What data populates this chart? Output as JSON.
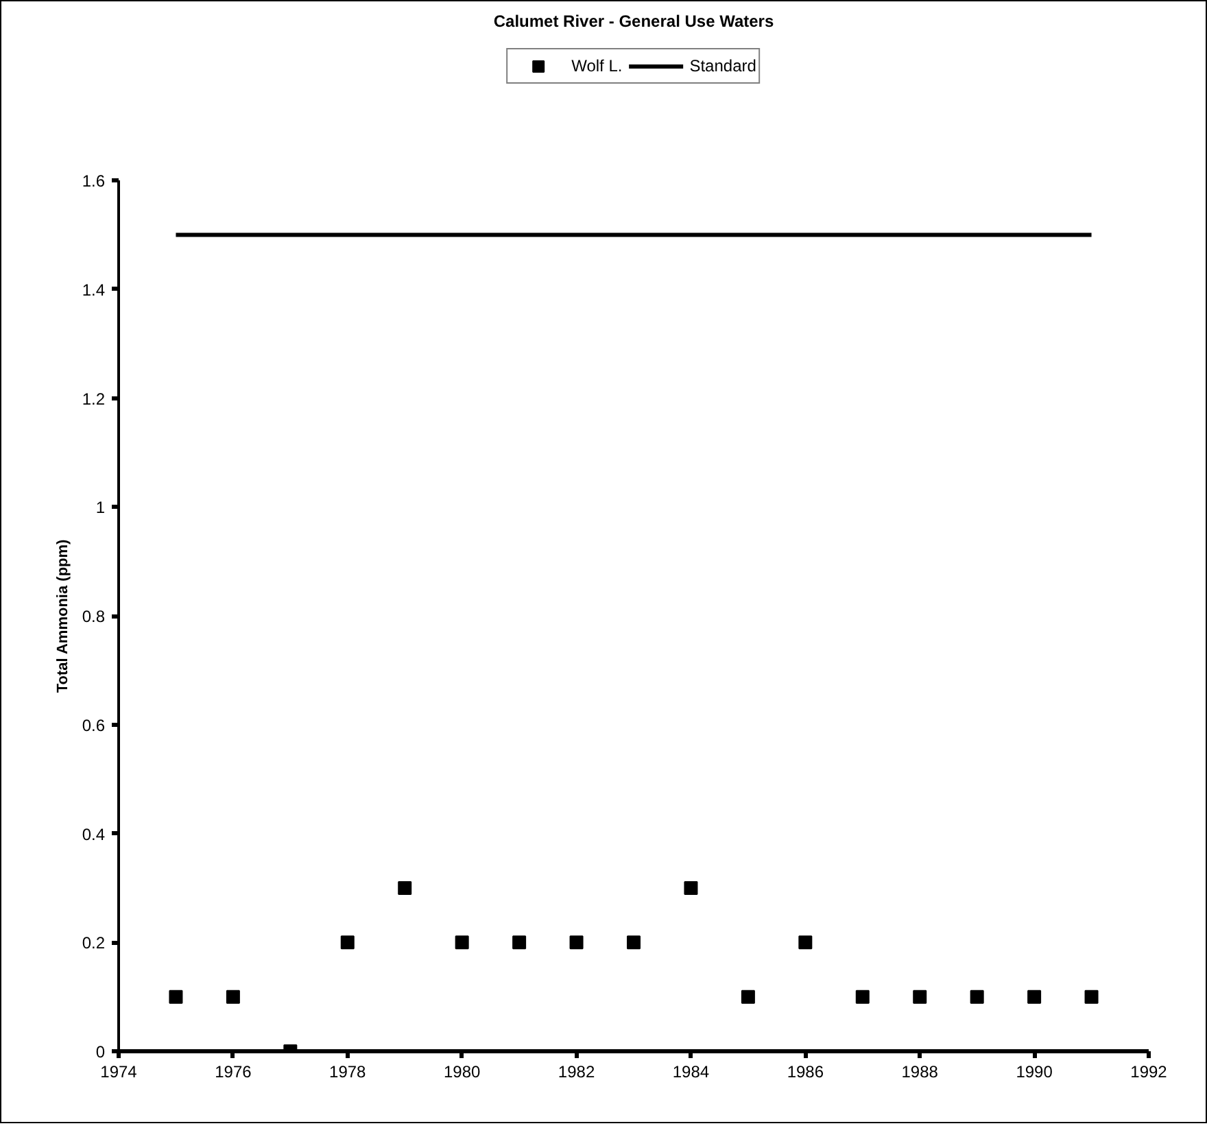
{
  "chart_data": {
    "type": "scatter",
    "title": "Calumet River - General Use Waters",
    "ylabel": "Total Ammonia (ppm)",
    "x": [
      1975,
      1976,
      1977,
      1978,
      1979,
      1980,
      1981,
      1982,
      1983,
      1984,
      1985,
      1986,
      1987,
      1988,
      1989,
      1990,
      1991
    ],
    "series": [
      {
        "name": "Wolf L.",
        "color": "#000000",
        "marker": "square",
        "values": [
          0.1,
          0.1,
          0.0,
          0.2,
          0.3,
          0.2,
          0.2,
          0.2,
          0.2,
          0.3,
          0.1,
          0.2,
          0.1,
          0.1,
          0.1,
          0.1,
          0.1
        ]
      },
      {
        "name": "Standard",
        "type": "line",
        "color": "#000000",
        "marker": "none",
        "line_style": "solid",
        "x": [
          1975,
          1991
        ],
        "values": [
          1.5,
          1.5
        ]
      }
    ],
    "xlim": [
      1974,
      1992
    ],
    "xticks": [
      1974,
      1976,
      1978,
      1980,
      1982,
      1984,
      1986,
      1988,
      1990,
      1992
    ],
    "ylim": [
      0,
      1.6
    ],
    "yticks": [
      0,
      0.2,
      0.4,
      0.6,
      0.8,
      1,
      1.2,
      1.4,
      1.6
    ],
    "grid": false,
    "legend": "top"
  }
}
